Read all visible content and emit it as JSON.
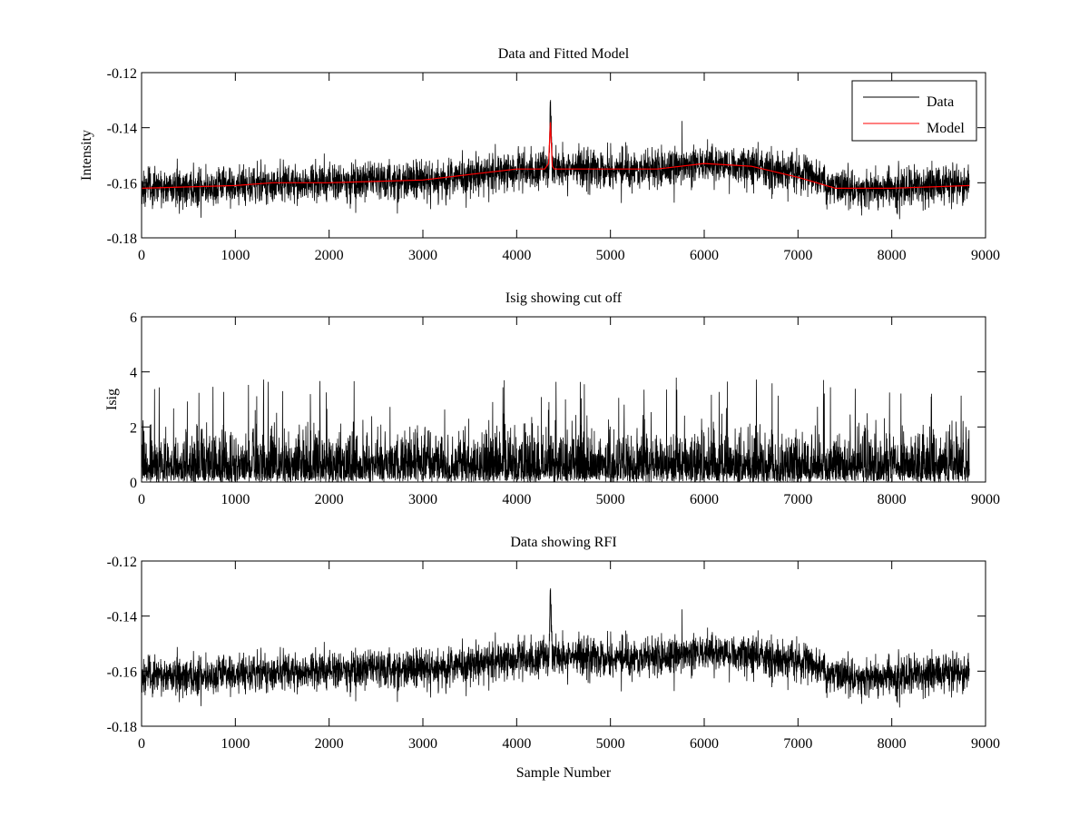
{
  "chart_data": [
    {
      "type": "line",
      "title": "Data and Fitted Model",
      "xlabel": "",
      "ylabel": "Intensity",
      "xlim": [
        0,
        9000
      ],
      "ylim": [
        -0.18,
        -0.12
      ],
      "xticks": [
        0,
        1000,
        2000,
        3000,
        4000,
        5000,
        6000,
        7000,
        8000,
        9000
      ],
      "xtick_labels": [
        "0",
        "1000",
        "2000",
        "3000",
        "4000",
        "5000",
        "6000",
        "7000",
        "8000",
        "9000"
      ],
      "yticks": [
        -0.18,
        -0.16,
        -0.14,
        -0.12
      ],
      "ytick_labels": [
        "-0.18",
        "-0.16",
        "-0.14",
        "-0.12"
      ],
      "grid": false,
      "legend": {
        "position": "top-right",
        "entries": [
          {
            "label": "Data",
            "color": "#000000"
          },
          {
            "label": "Model",
            "color": "#ff0000"
          }
        ]
      },
      "series": [
        {
          "name": "Data",
          "color": "#000000",
          "kind": "noisy",
          "n_samples": 8830,
          "noise_sd": 0.0035,
          "baseline_x": [
            0,
            1000,
            1500,
            2000,
            3000,
            3500,
            4000,
            4340,
            4360,
            4380,
            4400,
            5000,
            5500,
            6000,
            6500,
            7000,
            7400,
            8000,
            8830
          ],
          "baseline_y": [
            -0.162,
            -0.161,
            -0.16,
            -0.16,
            -0.159,
            -0.158,
            -0.155,
            -0.155,
            -0.133,
            -0.155,
            -0.155,
            -0.155,
            -0.155,
            -0.153,
            -0.154,
            -0.156,
            -0.162,
            -0.162,
            -0.16
          ]
        },
        {
          "name": "Model",
          "color": "#ff0000",
          "x": [
            0,
            1000,
            1400,
            1800,
            2000,
            3000,
            3500,
            4000,
            4300,
            4340,
            4360,
            4380,
            4400,
            5000,
            5500,
            6000,
            6500,
            7000,
            7400,
            8000,
            8830
          ],
          "y": [
            -0.162,
            -0.161,
            -0.16,
            -0.16,
            -0.16,
            -0.159,
            -0.157,
            -0.155,
            -0.155,
            -0.153,
            -0.138,
            -0.154,
            -0.155,
            -0.155,
            -0.155,
            -0.153,
            -0.154,
            -0.158,
            -0.162,
            -0.162,
            -0.161
          ]
        }
      ]
    },
    {
      "type": "line",
      "title": "Isig showing cut off",
      "xlabel": "",
      "ylabel": "Isig",
      "xlim": [
        0,
        9000
      ],
      "ylim": [
        0,
        6
      ],
      "xticks": [
        0,
        1000,
        2000,
        3000,
        4000,
        5000,
        6000,
        7000,
        8000,
        9000
      ],
      "xtick_labels": [
        "0",
        "1000",
        "2000",
        "3000",
        "4000",
        "5000",
        "6000",
        "7000",
        "8000",
        "9000"
      ],
      "yticks": [
        0,
        2,
        4,
        6
      ],
      "ytick_labels": [
        "0",
        "2",
        "4",
        "6"
      ],
      "grid": false,
      "series": [
        {
          "name": "Isig",
          "color": "#000000",
          "kind": "abs-noise",
          "n_samples": 8830,
          "typical_max": 3.0,
          "peak_max": 3.8
        }
      ]
    },
    {
      "type": "line",
      "title": "Data showing RFI",
      "xlabel": "Sample Number",
      "ylabel": "",
      "xlim": [
        0,
        9000
      ],
      "ylim": [
        -0.18,
        -0.12
      ],
      "xticks": [
        0,
        1000,
        2000,
        3000,
        4000,
        5000,
        6000,
        7000,
        8000,
        9000
      ],
      "xtick_labels": [
        "0",
        "1000",
        "2000",
        "3000",
        "4000",
        "5000",
        "6000",
        "7000",
        "8000",
        "9000"
      ],
      "yticks": [
        -0.18,
        -0.16,
        -0.14,
        -0.12
      ],
      "ytick_labels": [
        "-0.18",
        "-0.16",
        "-0.14",
        "-0.12"
      ],
      "grid": false,
      "series": [
        {
          "name": "Data",
          "color": "#000000",
          "kind": "noisy",
          "n_samples": 8830,
          "noise_sd": 0.0035,
          "baseline_x": [
            0,
            1000,
            1500,
            2000,
            3000,
            3500,
            4000,
            4340,
            4360,
            4380,
            4400,
            5000,
            5500,
            6000,
            6500,
            7000,
            7400,
            8000,
            8830
          ],
          "baseline_y": [
            -0.162,
            -0.161,
            -0.16,
            -0.16,
            -0.159,
            -0.158,
            -0.155,
            -0.155,
            -0.133,
            -0.155,
            -0.155,
            -0.155,
            -0.155,
            -0.153,
            -0.154,
            -0.156,
            -0.162,
            -0.162,
            -0.16
          ]
        }
      ]
    }
  ]
}
